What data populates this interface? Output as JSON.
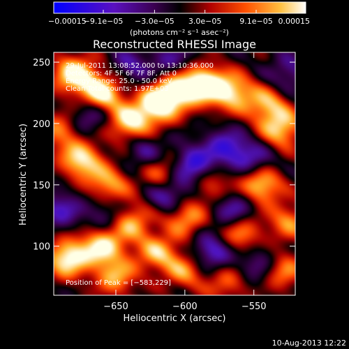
{
  "chart_data": {
    "type": "heatmap",
    "title": "Reconstructed RHESSI Image",
    "xlabel": "Heliocentric X (arcsec)",
    "ylabel": "Heliocentric Y (arcsec)",
    "xlim": [
      -695,
      -520
    ],
    "ylim": [
      60,
      258
    ],
    "x_ticks": [
      -650,
      -600,
      -550
    ],
    "x_tick_labels": [
      "−650",
      "−600",
      "−550"
    ],
    "y_ticks": [
      100,
      150,
      200,
      250
    ],
    "y_tick_labels": [
      "100",
      "150",
      "200",
      "250"
    ],
    "colorbar": {
      "range": [
        -0.00015,
        0.00015
      ],
      "ticks": [
        -0.00015,
        -9.1e-05,
        -3e-05,
        3e-05,
        9.1e-05,
        0.00015
      ],
      "tick_labels": [
        "−0.00015",
        "−9.1e−05",
        "−3.0e−05",
        "3.0e−05",
        "9.1e−05",
        "0.00015"
      ],
      "unit_label": "(photons cm⁻² s⁻¹ asec⁻²)"
    },
    "annotations": [
      "29-Jul-2011 13:08:52.000 to 13:10:36.000",
      "Detectors: 4F 5F 6F 7F 8F, Att 0",
      "Energy Range: 25.0 - 50.0 keV",
      "Clean    Total counts: 1.97E+03"
    ],
    "peak_label": "Position of Peak = [−583,229]",
    "peak": [
      -583,
      229
    ],
    "sources": [
      [
        -680,
        240,
        1.0
      ],
      [
        -660,
        225,
        1.0
      ],
      [
        -640,
        200,
        0.9
      ],
      [
        -620,
        215,
        1.0
      ],
      [
        -605,
        228,
        0.9
      ],
      [
        -585,
        232,
        1.0
      ],
      [
        -565,
        225,
        0.8
      ],
      [
        -540,
        215,
        0.7
      ],
      [
        -530,
        195,
        0.8
      ],
      [
        -690,
        195,
        0.6
      ],
      [
        -675,
        170,
        0.9
      ],
      [
        -655,
        150,
        0.7
      ],
      [
        -640,
        120,
        0.8
      ],
      [
        -660,
        100,
        0.9
      ],
      [
        -685,
        90,
        1.0
      ],
      [
        -650,
        75,
        0.7
      ],
      [
        -615,
        160,
        0.6
      ],
      [
        -600,
        125,
        0.8
      ],
      [
        -580,
        150,
        0.5
      ],
      [
        -560,
        110,
        0.7
      ],
      [
        -545,
        150,
        0.9
      ],
      [
        -525,
        120,
        0.6
      ],
      [
        -530,
        80,
        0.7
      ],
      [
        -600,
        80,
        0.6
      ],
      [
        -620,
        95,
        0.7
      ],
      [
        -570,
        70,
        0.5
      ]
    ],
    "sinks": [
      [
        -595,
        165,
        0.9
      ],
      [
        -610,
        140,
        0.8
      ],
      [
        -570,
        180,
        0.7
      ],
      [
        -580,
        95,
        0.8
      ],
      [
        -550,
        170,
        0.6
      ],
      [
        -670,
        205,
        0.6
      ],
      [
        -630,
        178,
        0.5
      ],
      [
        -655,
        125,
        0.6
      ],
      [
        -545,
        85,
        0.6
      ],
      [
        -640,
        245,
        0.5
      ],
      [
        -690,
        130,
        0.6
      ],
      [
        -525,
        240,
        0.5
      ],
      [
        -610,
        250,
        0.5
      ],
      [
        -565,
        130,
        0.7
      ]
    ]
  },
  "footer": {
    "timestamp": "10-Aug-2013 12:22"
  }
}
